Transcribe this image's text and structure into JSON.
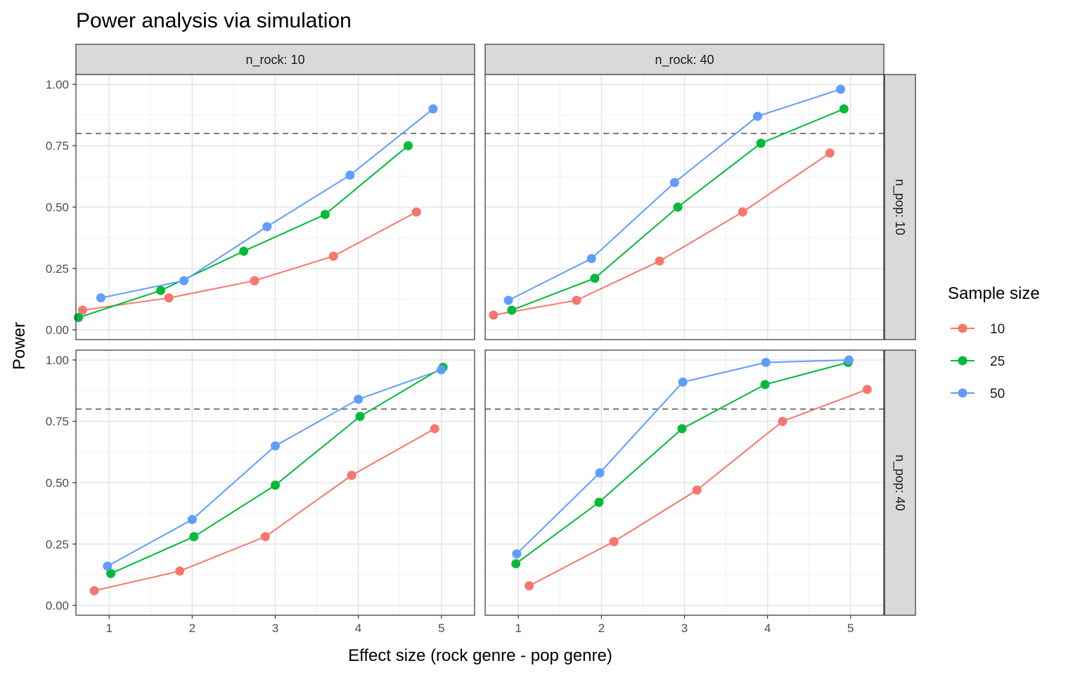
{
  "chart_data": {
    "type": "line",
    "title": "Power analysis via simulation",
    "xlabel": "Effect size (rock genre - pop genre)",
    "ylabel": "Power",
    "xlim": [
      0.6,
      5.4
    ],
    "ylim": [
      -0.04,
      1.04
    ],
    "x_ticks": [
      "1",
      "2",
      "3",
      "4",
      "5"
    ],
    "y_ticks": [
      "0.00",
      "0.25",
      "0.50",
      "0.75",
      "1.00"
    ],
    "reference_line": {
      "y": 0.8,
      "style": "dashed"
    },
    "grid": true,
    "legend": {
      "title": "Sample size",
      "placement": "right",
      "entries": [
        "10",
        "25",
        "50"
      ]
    },
    "colors": {
      "10": "#F8766D",
      "25": "#00BA38",
      "50": "#619CFF"
    },
    "facet_cols": [
      "n_rock: 10",
      "n_rock: 40"
    ],
    "facet_rows": [
      "n_pop: 10",
      "n_pop: 40"
    ],
    "panels": [
      {
        "col": "n_rock: 10",
        "row": "n_pop: 10",
        "series": [
          {
            "name": "10",
            "x": [
              0.68,
              1.72,
              2.75,
              3.7,
              4.7
            ],
            "y": [
              0.08,
              0.13,
              0.2,
              0.3,
              0.48
            ]
          },
          {
            "name": "25",
            "x": [
              0.63,
              1.62,
              2.62,
              3.6,
              4.6
            ],
            "y": [
              0.05,
              0.16,
              0.32,
              0.47,
              0.75
            ]
          },
          {
            "name": "50",
            "x": [
              0.9,
              1.9,
              2.9,
              3.9,
              4.9
            ],
            "y": [
              0.13,
              0.2,
              0.42,
              0.63,
              0.9
            ]
          }
        ]
      },
      {
        "col": "n_rock: 40",
        "row": "n_pop: 10",
        "series": [
          {
            "name": "10",
            "x": [
              0.7,
              1.7,
              2.7,
              3.7,
              4.75
            ],
            "y": [
              0.06,
              0.12,
              0.28,
              0.48,
              0.72
            ]
          },
          {
            "name": "25",
            "x": [
              0.92,
              1.92,
              2.92,
              3.92,
              4.92
            ],
            "y": [
              0.08,
              0.21,
              0.5,
              0.76,
              0.9
            ]
          },
          {
            "name": "50",
            "x": [
              0.88,
              1.88,
              2.88,
              3.88,
              4.88
            ],
            "y": [
              0.12,
              0.29,
              0.6,
              0.87,
              0.98
            ]
          }
        ]
      },
      {
        "col": "n_rock: 10",
        "row": "n_pop: 40",
        "series": [
          {
            "name": "10",
            "x": [
              0.82,
              1.85,
              2.88,
              3.92,
              4.92
            ],
            "y": [
              0.06,
              0.14,
              0.28,
              0.53,
              0.72
            ]
          },
          {
            "name": "25",
            "x": [
              1.02,
              2.02,
              3.0,
              4.02,
              5.02
            ],
            "y": [
              0.13,
              0.28,
              0.49,
              0.77,
              0.97
            ]
          },
          {
            "name": "50",
            "x": [
              0.98,
              2.0,
              3.0,
              4.0,
              5.0
            ],
            "y": [
              0.16,
              0.35,
              0.65,
              0.84,
              0.96
            ]
          }
        ]
      },
      {
        "col": "n_rock: 40",
        "row": "n_pop: 40",
        "series": [
          {
            "name": "10",
            "x": [
              1.13,
              2.15,
              3.15,
              4.18,
              5.2
            ],
            "y": [
              0.08,
              0.26,
              0.47,
              0.75,
              0.88
            ]
          },
          {
            "name": "25",
            "x": [
              0.97,
              1.97,
              2.97,
              3.97,
              4.97
            ],
            "y": [
              0.17,
              0.42,
              0.72,
              0.9,
              0.99
            ]
          },
          {
            "name": "50",
            "x": [
              0.98,
              1.98,
              2.98,
              3.98,
              4.98
            ],
            "y": [
              0.21,
              0.54,
              0.91,
              0.99,
              1.0
            ]
          }
        ]
      }
    ]
  }
}
